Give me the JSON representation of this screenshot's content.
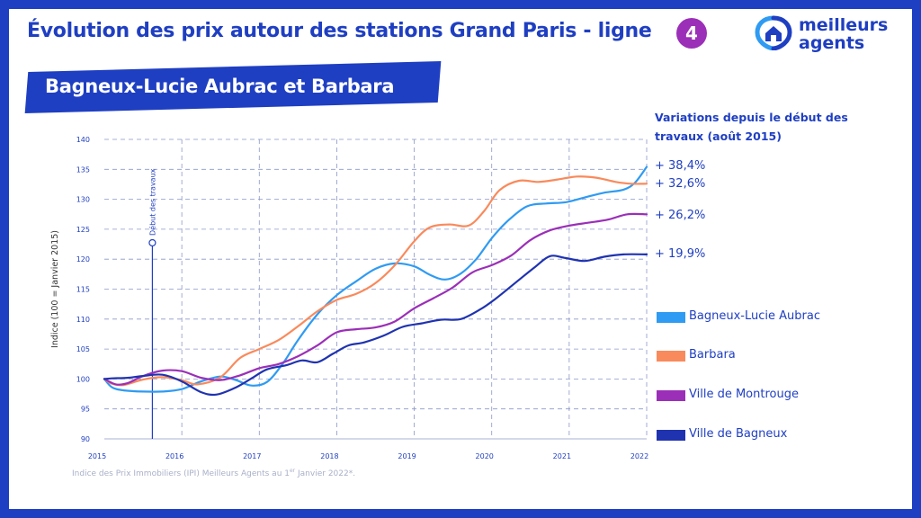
{
  "header": {
    "title": "Évolution des prix autour des stations Grand Paris - ligne",
    "line_number": "4",
    "station": "Bagneux-Lucie Aubrac et Barbara"
  },
  "logo": {
    "line1": "meilleurs",
    "line2": "agents"
  },
  "variations": {
    "title": "Variations depuis le début des travaux (août 2015)",
    "values": [
      "+ 38,4%",
      "+ 32,6%",
      "+ 26,2%",
      "+ 19,9%"
    ]
  },
  "footnote": {
    "text": "Indice des Prix Immobiliers (IPI) Meilleurs Agents au 1",
    "sup": "er",
    "tail": " Janvier 2022*."
  },
  "colors": {
    "frame": "#1f3fc2",
    "bagneux_lucie_aubrac": "#2f9bf2",
    "barbara": "#f98a5c",
    "montrouge": "#9b2fb8",
    "ville_bagneux": "#1f33b0"
  },
  "chart_data": {
    "type": "line",
    "title": "",
    "xlabel": "",
    "ylabel": "Indice (100 = Janvier 2015)",
    "xlim": [
      2015,
      2022
    ],
    "ylim": [
      90,
      140
    ],
    "x_ticks": [
      "2015",
      "2016",
      "2017",
      "2018",
      "2019",
      "2020",
      "2021",
      "2022"
    ],
    "y_ticks": [
      "90",
      "95",
      "100",
      "105",
      "110",
      "115",
      "120",
      "125",
      "130",
      "135",
      "140"
    ],
    "grid": true,
    "legend_position": "right",
    "annotation": {
      "label": "Début des travaux",
      "x": 2015.62
    },
    "series": [
      {
        "name": "Bagneux-Lucie Aubrac",
        "color": "#2f9bf2",
        "points": [
          [
            2015,
            100
          ],
          [
            2015.1,
            98.6
          ],
          [
            2015.25,
            98.1
          ],
          [
            2015.5,
            97.9
          ],
          [
            2015.75,
            97.9
          ],
          [
            2016,
            98.3
          ],
          [
            2016.25,
            99.6
          ],
          [
            2016.5,
            100.4
          ],
          [
            2016.7,
            99.8
          ],
          [
            2016.9,
            98.9
          ],
          [
            2017.1,
            99.5
          ],
          [
            2017.3,
            102.5
          ],
          [
            2017.5,
            106.5
          ],
          [
            2017.75,
            110.8
          ],
          [
            2018,
            114
          ],
          [
            2018.25,
            116.3
          ],
          [
            2018.5,
            118.4
          ],
          [
            2018.75,
            119.3
          ],
          [
            2019,
            118.8
          ],
          [
            2019.2,
            117.4
          ],
          [
            2019.4,
            116.6
          ],
          [
            2019.6,
            117.6
          ],
          [
            2019.8,
            120
          ],
          [
            2020,
            123.5
          ],
          [
            2020.2,
            126.3
          ],
          [
            2020.45,
            128.8
          ],
          [
            2020.7,
            129.3
          ],
          [
            2020.95,
            129.5
          ],
          [
            2021.2,
            130.3
          ],
          [
            2021.45,
            131.1
          ],
          [
            2021.7,
            131.6
          ],
          [
            2021.85,
            132.8
          ],
          [
            2022,
            135.4
          ]
        ]
      },
      {
        "name": "Barbara",
        "color": "#f98a5c",
        "points": [
          [
            2015,
            100
          ],
          [
            2015.1,
            99.2
          ],
          [
            2015.25,
            99
          ],
          [
            2015.5,
            99.9
          ],
          [
            2015.75,
            100.3
          ],
          [
            2016,
            99.8
          ],
          [
            2016.2,
            99.1
          ],
          [
            2016.5,
            100.3
          ],
          [
            2016.75,
            103.5
          ],
          [
            2017,
            105
          ],
          [
            2017.25,
            106.5
          ],
          [
            2017.5,
            108.8
          ],
          [
            2017.75,
            111.3
          ],
          [
            2018,
            113.2
          ],
          [
            2018.25,
            114.2
          ],
          [
            2018.5,
            116
          ],
          [
            2018.75,
            119
          ],
          [
            2019,
            123
          ],
          [
            2019.2,
            125.3
          ],
          [
            2019.45,
            125.8
          ],
          [
            2019.7,
            125.6
          ],
          [
            2019.9,
            128
          ],
          [
            2020.1,
            131.5
          ],
          [
            2020.35,
            133.1
          ],
          [
            2020.6,
            132.9
          ],
          [
            2020.85,
            133.3
          ],
          [
            2021.1,
            133.8
          ],
          [
            2021.35,
            133.6
          ],
          [
            2021.6,
            132.9
          ],
          [
            2021.8,
            132.6
          ],
          [
            2022,
            132.6
          ]
        ]
      },
      {
        "name": "Ville de Montrouge",
        "color": "#9b2fb8",
        "points": [
          [
            2015,
            100
          ],
          [
            2015.15,
            99.1
          ],
          [
            2015.3,
            99.3
          ],
          [
            2015.5,
            100.5
          ],
          [
            2015.75,
            101.4
          ],
          [
            2016,
            101.3
          ],
          [
            2016.25,
            100.2
          ],
          [
            2016.5,
            99.8
          ],
          [
            2016.75,
            100.6
          ],
          [
            2017,
            101.8
          ],
          [
            2017.25,
            102.5
          ],
          [
            2017.5,
            103.8
          ],
          [
            2017.75,
            105.6
          ],
          [
            2018,
            107.8
          ],
          [
            2018.25,
            108.3
          ],
          [
            2018.5,
            108.6
          ],
          [
            2018.75,
            109.6
          ],
          [
            2019,
            111.8
          ],
          [
            2019.25,
            113.5
          ],
          [
            2019.5,
            115.3
          ],
          [
            2019.75,
            117.8
          ],
          [
            2020,
            119
          ],
          [
            2020.25,
            120.6
          ],
          [
            2020.5,
            123.2
          ],
          [
            2020.75,
            124.8
          ],
          [
            2021,
            125.6
          ],
          [
            2021.25,
            126.1
          ],
          [
            2021.5,
            126.6
          ],
          [
            2021.75,
            127.5
          ],
          [
            2022,
            127.5
          ]
        ]
      },
      {
        "name": "Ville de Bagneux",
        "color": "#1f33b0",
        "points": [
          [
            2015,
            100
          ],
          [
            2015.1,
            100.1
          ],
          [
            2015.3,
            100.2
          ],
          [
            2015.5,
            100.5
          ],
          [
            2015.75,
            100.7
          ],
          [
            2016,
            99.6
          ],
          [
            2016.25,
            97.8
          ],
          [
            2016.45,
            97.4
          ],
          [
            2016.7,
            98.6
          ],
          [
            2016.9,
            100.1
          ],
          [
            2017.1,
            101.6
          ],
          [
            2017.35,
            102.3
          ],
          [
            2017.55,
            103.1
          ],
          [
            2017.75,
            102.8
          ],
          [
            2017.95,
            104.2
          ],
          [
            2018.15,
            105.6
          ],
          [
            2018.35,
            106.1
          ],
          [
            2018.6,
            107.2
          ],
          [
            2018.85,
            108.7
          ],
          [
            2019.1,
            109.3
          ],
          [
            2019.35,
            109.9
          ],
          [
            2019.6,
            110
          ],
          [
            2019.85,
            111.6
          ],
          [
            2020.05,
            113.4
          ],
          [
            2020.3,
            116
          ],
          [
            2020.55,
            118.6
          ],
          [
            2020.75,
            120.5
          ],
          [
            2020.95,
            120.2
          ],
          [
            2021.2,
            119.7
          ],
          [
            2021.45,
            120.4
          ],
          [
            2021.7,
            120.8
          ],
          [
            2022,
            120.8
          ]
        ]
      }
    ]
  }
}
